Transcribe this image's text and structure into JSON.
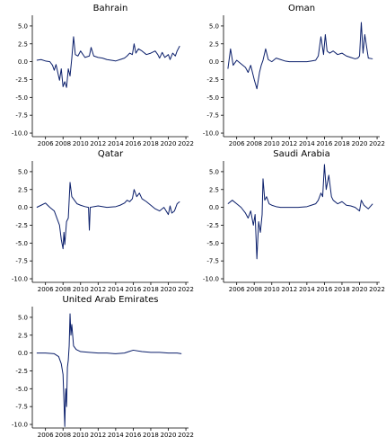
{
  "chart_data": [
    {
      "type": "line",
      "title": "Bahrain",
      "xlabel": "",
      "ylabel": "",
      "xlim": [
        2004.5,
        2022.3
      ],
      "ylim": [
        -10.5,
        6.5
      ],
      "xticks": [
        2006,
        2008,
        2010,
        2012,
        2014,
        2016,
        2018,
        2020,
        2022
      ],
      "yticks": [
        -10.0,
        -7.5,
        -5.0,
        -2.5,
        0.0,
        2.5,
        5.0
      ],
      "grid": false,
      "series": [
        {
          "color": "#0b1f6b",
          "x": [
            2005.0,
            2005.5,
            2006.0,
            2006.5,
            2006.8,
            2007.0,
            2007.2,
            2007.4,
            2007.6,
            2007.8,
            2008.0,
            2008.2,
            2008.4,
            2008.6,
            2008.8,
            2009.0,
            2009.2,
            2009.4,
            2009.7,
            2010.0,
            2010.5,
            2011.0,
            2011.2,
            2011.5,
            2012.0,
            2012.5,
            2013.0,
            2013.5,
            2014.0,
            2014.5,
            2015.0,
            2015.3,
            2015.6,
            2015.9,
            2016.1,
            2016.3,
            2016.6,
            2017.0,
            2017.5,
            2018.0,
            2018.5,
            2018.8,
            2019.0,
            2019.3,
            2019.6,
            2020.0,
            2020.2,
            2020.5,
            2020.8,
            2021.0,
            2021.3
          ],
          "values": [
            0.2,
            0.3,
            0.1,
            0.0,
            -0.5,
            -1.2,
            -0.4,
            -1.5,
            -2.6,
            -1.0,
            -3.5,
            -2.8,
            -3.6,
            -1.0,
            -2.0,
            0.5,
            3.5,
            1.0,
            0.8,
            1.5,
            0.6,
            0.8,
            2.0,
            0.8,
            0.6,
            0.5,
            0.3,
            0.2,
            0.1,
            0.3,
            0.5,
            0.8,
            1.2,
            1.0,
            2.5,
            1.2,
            1.8,
            1.5,
            1.0,
            1.2,
            1.5,
            1.0,
            0.5,
            1.3,
            0.6,
            1.0,
            0.3,
            1.2,
            0.8,
            1.5,
            2.2
          ]
        }
      ]
    },
    {
      "type": "line",
      "title": "Oman",
      "xlabel": "",
      "ylabel": "",
      "xlim": [
        2004.5,
        2022.3
      ],
      "ylim": [
        -10.5,
        6.5
      ],
      "xticks": [
        2006,
        2008,
        2010,
        2012,
        2014,
        2016,
        2018,
        2020,
        2022
      ],
      "yticks": [
        -10.0,
        -7.5,
        -5.0,
        -2.5,
        0.0,
        2.5,
        5.0
      ],
      "grid": false,
      "series": [
        {
          "color": "#0b1f6b",
          "x": [
            2005.0,
            2005.3,
            2005.6,
            2006.0,
            2006.5,
            2007.0,
            2007.3,
            2007.6,
            2008.0,
            2008.3,
            2008.6,
            2008.8,
            2009.0,
            2009.3,
            2009.6,
            2010.0,
            2010.5,
            2011.0,
            2011.5,
            2012.0,
            2013.0,
            2014.0,
            2014.5,
            2015.0,
            2015.3,
            2015.6,
            2015.9,
            2016.1,
            2016.3,
            2016.6,
            2017.0,
            2017.5,
            2018.0,
            2018.5,
            2019.0,
            2019.5,
            2019.8,
            2020.0,
            2020.2,
            2020.4,
            2020.6,
            2021.0,
            2021.5
          ],
          "values": [
            -1.0,
            1.8,
            -0.5,
            0.2,
            -0.3,
            -0.8,
            -1.5,
            -0.5,
            -2.5,
            -3.8,
            -1.5,
            -0.5,
            0.2,
            1.8,
            0.3,
            0.0,
            0.5,
            0.3,
            0.1,
            0.0,
            0.0,
            0.0,
            0.1,
            0.2,
            0.8,
            3.5,
            1.0,
            3.8,
            1.5,
            1.2,
            1.5,
            1.0,
            1.2,
            0.8,
            0.6,
            0.4,
            0.5,
            0.8,
            5.5,
            1.2,
            3.8,
            0.5,
            0.4
          ]
        }
      ]
    },
    {
      "type": "line",
      "title": "Qatar",
      "xlabel": "",
      "ylabel": "",
      "xlim": [
        2004.5,
        2022.3
      ],
      "ylim": [
        -10.5,
        6.5
      ],
      "xticks": [
        2006,
        2008,
        2010,
        2012,
        2014,
        2016,
        2018,
        2020,
        2022
      ],
      "yticks": [
        -10.0,
        -7.5,
        -5.0,
        -2.5,
        0.0,
        2.5,
        5.0
      ],
      "grid": false,
      "series": [
        {
          "color": "#0b1f6b",
          "x": [
            2005.0,
            2005.5,
            2006.0,
            2006.5,
            2007.0,
            2007.3,
            2007.6,
            2007.8,
            2008.0,
            2008.1,
            2008.2,
            2008.4,
            2008.6,
            2008.8,
            2009.0,
            2009.3,
            2009.6,
            2010.0,
            2010.5,
            2010.9,
            2011.0,
            2011.1,
            2011.5,
            2012.0,
            2013.0,
            2014.0,
            2014.5,
            2015.0,
            2015.3,
            2015.6,
            2015.9,
            2016.1,
            2016.4,
            2016.7,
            2017.0,
            2017.5,
            2018.0,
            2018.5,
            2019.0,
            2019.5,
            2020.0,
            2020.2,
            2020.4,
            2020.7,
            2021.0,
            2021.3
          ],
          "values": [
            0.0,
            0.3,
            0.6,
            0.0,
            -0.5,
            -1.5,
            -2.5,
            -4.5,
            -5.8,
            -3.5,
            -5.2,
            -2.0,
            -1.5,
            3.5,
            1.5,
            1.0,
            0.5,
            0.3,
            0.1,
            0.0,
            -3.2,
            0.0,
            0.1,
            0.2,
            0.0,
            0.1,
            0.3,
            0.6,
            1.0,
            0.8,
            1.2,
            2.5,
            1.5,
            2.0,
            1.2,
            0.8,
            0.3,
            -0.2,
            -0.5,
            0.0,
            -1.0,
            0.2,
            -0.8,
            -0.5,
            0.5,
            0.8
          ]
        }
      ]
    },
    {
      "type": "line",
      "title": "Saudi Arabia",
      "xlabel": "",
      "ylabel": "",
      "xlim": [
        2004.5,
        2022.3
      ],
      "ylim": [
        -10.5,
        6.5
      ],
      "xticks": [
        2006,
        2008,
        2010,
        2012,
        2014,
        2016,
        2018,
        2020,
        2022
      ],
      "yticks": [
        -10.0,
        -7.5,
        -5.0,
        -2.5,
        0.0,
        2.5,
        5.0
      ],
      "grid": false,
      "series": [
        {
          "color": "#0b1f6b",
          "x": [
            2005.0,
            2005.5,
            2006.0,
            2006.5,
            2007.0,
            2007.3,
            2007.6,
            2007.9,
            2008.1,
            2008.3,
            2008.5,
            2008.7,
            2008.9,
            2009.0,
            2009.2,
            2009.4,
            2009.7,
            2010.0,
            2010.5,
            2011.0,
            2012.0,
            2013.0,
            2014.0,
            2014.5,
            2015.0,
            2015.3,
            2015.6,
            2015.8,
            2016.0,
            2016.2,
            2016.5,
            2016.8,
            2017.0,
            2017.5,
            2018.0,
            2018.5,
            2019.0,
            2019.5,
            2020.0,
            2020.2,
            2020.5,
            2021.0,
            2021.5
          ],
          "values": [
            0.5,
            1.0,
            0.5,
            0.0,
            -0.8,
            -1.5,
            -0.5,
            -2.5,
            -1.0,
            -7.2,
            -2.0,
            -3.5,
            -1.0,
            4.0,
            1.0,
            1.5,
            0.5,
            0.3,
            0.1,
            0.0,
            0.0,
            0.0,
            0.1,
            0.3,
            0.5,
            1.0,
            2.0,
            1.5,
            6.0,
            2.5,
            4.5,
            1.5,
            1.0,
            0.5,
            0.8,
            0.3,
            0.2,
            0.0,
            -0.5,
            1.0,
            0.3,
            -0.2,
            0.5
          ]
        }
      ]
    },
    {
      "type": "line",
      "title": "United Arab Emirates",
      "xlabel": "",
      "ylabel": "",
      "xlim": [
        2004.5,
        2022.3
      ],
      "ylim": [
        -10.5,
        6.5
      ],
      "xticks": [
        2006,
        2008,
        2010,
        2012,
        2014,
        2016,
        2018,
        2020,
        2022
      ],
      "yticks": [
        -10.0,
        -7.5,
        -5.0,
        -2.5,
        0.0,
        2.5,
        5.0
      ],
      "grid": false,
      "series": [
        {
          "color": "#0b1f6b",
          "x": [
            2005.0,
            2006.0,
            2007.0,
            2007.5,
            2007.8,
            2008.0,
            2008.1,
            2008.2,
            2008.3,
            2008.4,
            2008.5,
            2008.6,
            2008.7,
            2008.8,
            2008.9,
            2009.0,
            2009.2,
            2009.5,
            2010.0,
            2011.0,
            2012.0,
            2013.0,
            2014.0,
            2015.0,
            2015.5,
            2016.0,
            2017.0,
            2018.0,
            2019.0,
            2020.0,
            2021.0,
            2021.5
          ],
          "values": [
            0.0,
            0.0,
            -0.1,
            -0.5,
            -1.5,
            -3.0,
            -6.5,
            -10.3,
            -5.0,
            -7.5,
            -2.0,
            -1.0,
            1.0,
            5.5,
            2.5,
            4.0,
            1.0,
            0.5,
            0.2,
            0.1,
            0.0,
            0.0,
            -0.1,
            0.0,
            0.2,
            0.4,
            0.2,
            0.1,
            0.1,
            0.0,
            0.0,
            -0.1
          ]
        }
      ]
    }
  ]
}
